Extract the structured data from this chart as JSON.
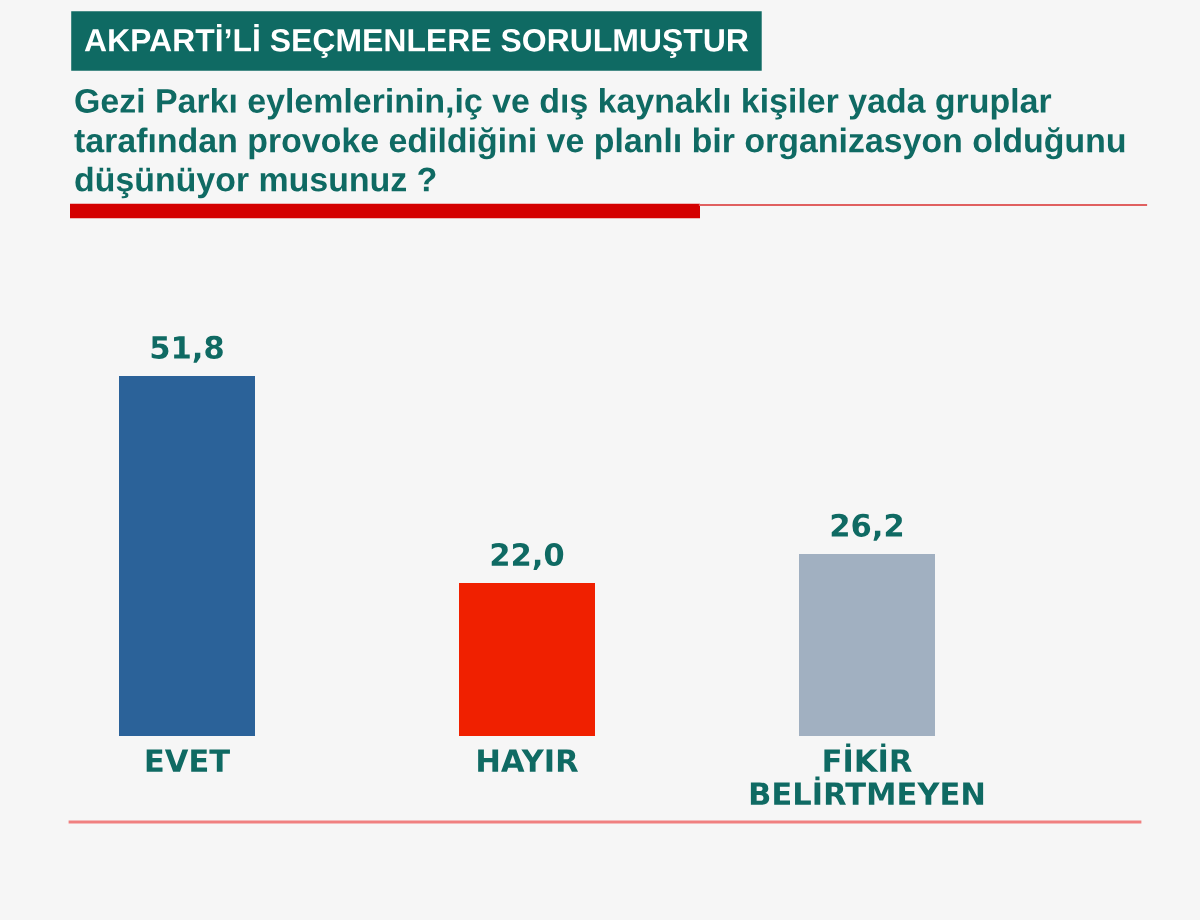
{
  "chart_data": {
    "type": "bar",
    "title": "AKPARTİ’Lİ SEÇMENLERE SORULMUŞTUR",
    "subtitle": "Gezi Parkı eylemlerinin,iç ve dış kaynaklı kişiler yada gruplar tarafından provoke edildiğini ve planlı bir organizasyon olduğunu düşünüyor musunuz ?",
    "categories": [
      "EVET",
      "HAYIR",
      "FİKİR BELİRTMEYEN"
    ],
    "values": [
      51.8,
      22.0,
      26.2
    ],
    "colors": [
      "#2b6299",
      "#f02000",
      "#a1b0c1"
    ],
    "value_labels": [
      "51,8",
      "22,0",
      "26,2"
    ],
    "tick_labels": "x"
  }
}
